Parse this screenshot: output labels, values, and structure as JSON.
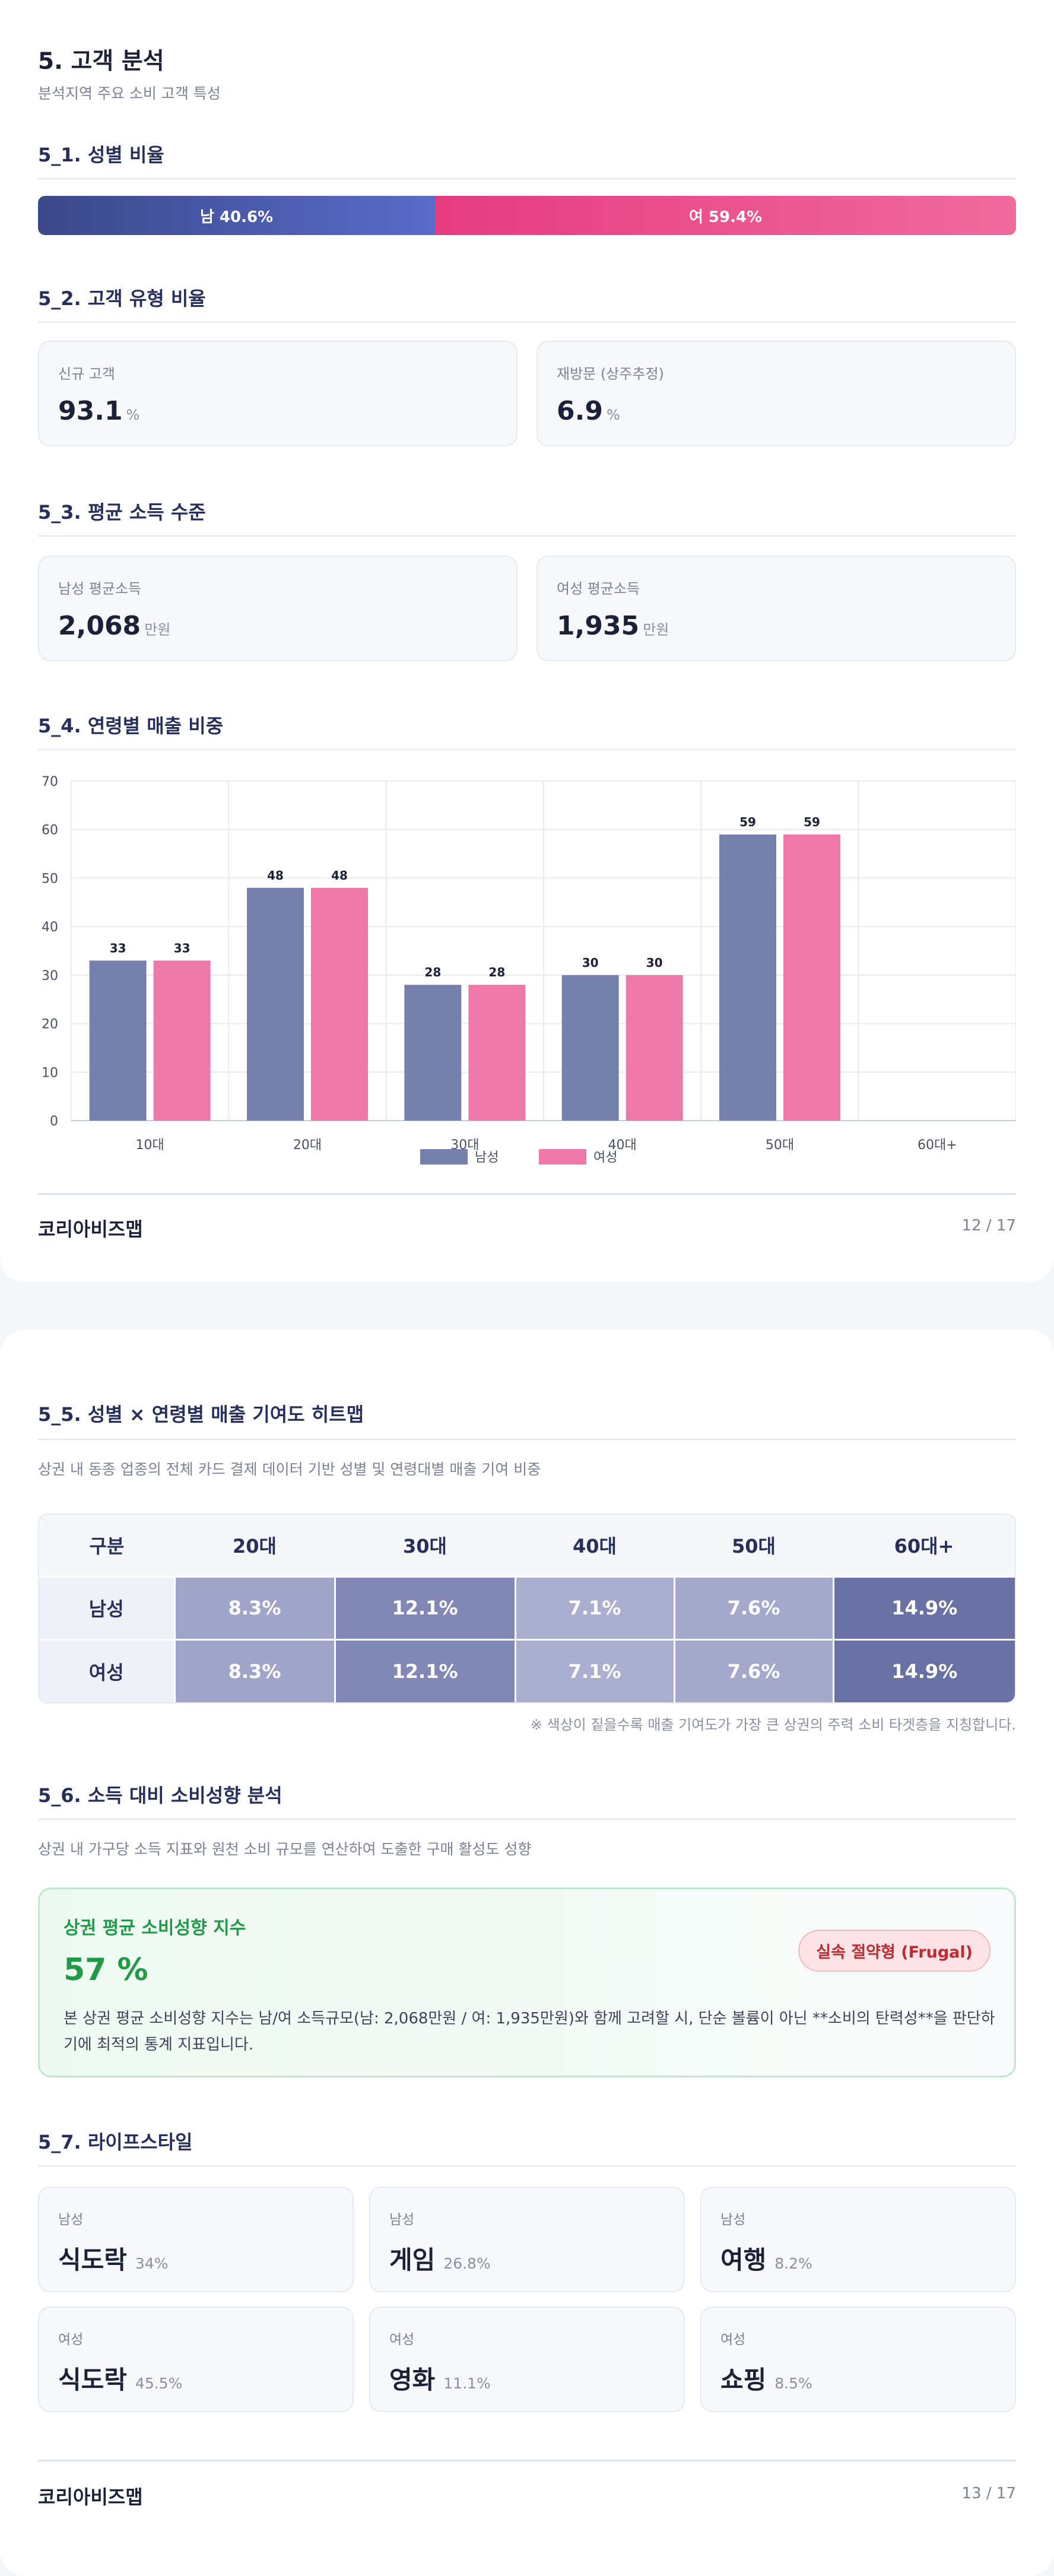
{
  "page1": {
    "title": "5. 고객 분석",
    "subtitle": "분석지역 주요 소비 고객 특성",
    "s1": {
      "heading": "5_1. 성별 비율",
      "male_label": "남 40.6%",
      "female_label": "여 59.4%",
      "male_share": 40.6,
      "female_share": 59.4,
      "colors": {
        "male": "#4a58a8",
        "female": "#ea4a89"
      }
    },
    "s2": {
      "heading": "5_2. 고객 유형 비율",
      "cards": [
        {
          "label": "신규 고객",
          "value": "93.1",
          "unit": "%"
        },
        {
          "label": "재방문 (상주추정)",
          "value": "6.9",
          "unit": "%"
        }
      ]
    },
    "s3": {
      "heading": "5_3. 평균 소득 수준",
      "cards": [
        {
          "label": "남성 평균소득",
          "value": "2,068",
          "unit": "만원"
        },
        {
          "label": "여성 평균소득",
          "value": "1,935",
          "unit": "만원"
        }
      ]
    },
    "s4": {
      "heading": "5_4. 연령별 매출 비중"
    },
    "footer": {
      "brand": "코리아비즈맵",
      "page": "12 / 17"
    }
  },
  "chart_data": {
    "type": "bar",
    "categories": [
      "10대",
      "20대",
      "30대",
      "40대",
      "50대",
      "60대+"
    ],
    "series": [
      {
        "name": "남성",
        "values": [
          33,
          48,
          28,
          30,
          59,
          null
        ],
        "color": "#7680ad"
      },
      {
        "name": "여성",
        "values": [
          33,
          48,
          28,
          30,
          59,
          null
        ],
        "color": "#ee78a7"
      }
    ],
    "ylim": [
      0,
      70
    ],
    "yticks": [
      0,
      10,
      20,
      30,
      40,
      50,
      60,
      70
    ],
    "grid": true,
    "legend": "bottom-center",
    "data_labels": true
  },
  "page2": {
    "s5": {
      "heading": "5_5. 성별 × 연령별 매출 기여도 히트맵",
      "desc": "상권 내 동종 업종의 전체 카드 결제 데이터 기반 성별 및 연령대별 매출 기여 비중",
      "columns": [
        "구분",
        "20대",
        "30대",
        "40대",
        "50대",
        "60대+"
      ],
      "rows": [
        {
          "label": "남성",
          "cells": [
            "8.3%",
            "12.1%",
            "7.1%",
            "7.6%",
            "14.9%"
          ]
        },
        {
          "label": "여성",
          "cells": [
            "8.3%",
            "12.1%",
            "7.1%",
            "7.6%",
            "14.9%"
          ]
        }
      ],
      "cell_colors": [
        "#9fa5c8",
        "#8288b6",
        "#aaafd0",
        "#a4a9cb",
        "#6870a4"
      ],
      "note": "※ 색상이 짙을수록 매출 기여도가 가장 큰 상권의 주력 소비 타겟층을 지칭합니다."
    },
    "s6": {
      "heading": "5_6. 소득 대비 소비성향 분석",
      "desc": "상권 내 가구당 소득 지표와 원천 소비 규모를 연산하여 도출한 구매 활성도 성향",
      "box_title": "상권 평균 소비성향 지수",
      "value": "57 %",
      "badge": "실속 절약형 (Frugal)",
      "text": "본 상권 평균 소비성향 지수는 남/여 소득규모(남: 2,068만원 / 여: 1,935만원)와 함께 고려할 시, 단순 볼륨이 아닌 **소비의 탄력성**을 판단하기에 최적의 통계 지표입니다."
    },
    "s7": {
      "heading": "5_7. 라이프스타일",
      "items": [
        {
          "gender": "남성",
          "name": "식도락",
          "pct": "34%"
        },
        {
          "gender": "남성",
          "name": "게임",
          "pct": "26.8%"
        },
        {
          "gender": "남성",
          "name": "여행",
          "pct": "8.2%"
        },
        {
          "gender": "여성",
          "name": "식도락",
          "pct": "45.5%"
        },
        {
          "gender": "여성",
          "name": "영화",
          "pct": "11.1%"
        },
        {
          "gender": "여성",
          "name": "쇼핑",
          "pct": "8.5%"
        }
      ]
    },
    "footer": {
      "brand": "코리아비즈맵",
      "page": "13 / 17"
    }
  }
}
